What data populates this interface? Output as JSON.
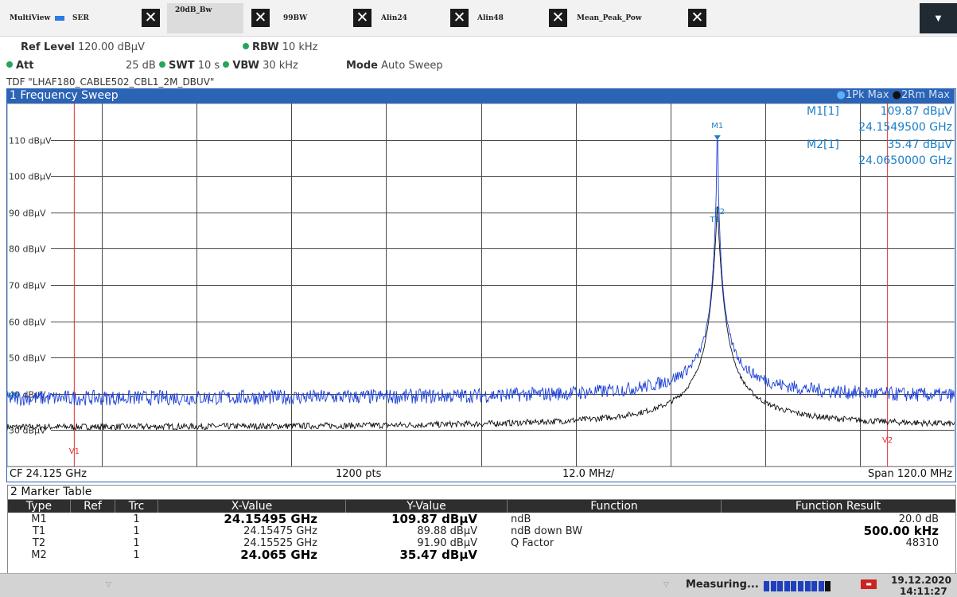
{
  "tabs": [
    {
      "label": "MultiView",
      "active": false
    },
    {
      "label": "SER",
      "active": false
    },
    {
      "label": "20dB_Bw",
      "active": true
    },
    {
      "label": "99BW",
      "active": false
    },
    {
      "label": "Alin24",
      "active": false
    },
    {
      "label": "Alin48",
      "active": false
    },
    {
      "label": "Mean_Peak_Pow",
      "active": false
    }
  ],
  "close_glyph": "✕",
  "settings": {
    "ref_level_label": "Ref Level",
    "ref_level_value": "120.00 dBµV",
    "rbw_label": "RBW",
    "rbw_value": "10 kHz",
    "att_label": "Att",
    "att_value": "25 dB",
    "swt_label": "SWT",
    "swt_value": "10 s",
    "vbw_label": "VBW",
    "vbw_value": "30 kHz",
    "mode_label": "Mode",
    "mode_value": "Auto Sweep",
    "tdf": "TDF \"LHAF180_CABLE502_CBL1_2M_DBUV\""
  },
  "sweep": {
    "title": "1 Frequency Sweep",
    "trace1_label": "1Pk Max",
    "trace2_label": "2Rm Max",
    "footer": {
      "cf": "CF 24.125 GHz",
      "pts": "1200 pts",
      "div": "12.0 MHz/",
      "span": "Span 120.0 MHz"
    },
    "marker_info": [
      {
        "name": "M1[1]",
        "level": "109.87 dBµV",
        "freq": "24.1549500 GHz"
      },
      {
        "name": "M2[1]",
        "level": "35.47 dBµV",
        "freq": "24.0650000 GHz"
      }
    ],
    "plot_markers": {
      "m1": "M1",
      "t2": "T2",
      "t1": "T1",
      "m2": "M2",
      "v1": "V1",
      "v2": "V2"
    }
  },
  "chart_data": {
    "type": "line",
    "title": "1 Frequency Sweep",
    "xlabel": "",
    "ylabel": "",
    "x_range_ghz": [
      24.065,
      24.185
    ],
    "ylim": [
      20,
      120
    ],
    "y_ticks": [
      "110 dBµV",
      "100 dBµV",
      "90 dBµV",
      "80 dBµV",
      "70 dBµV",
      "60 dBµV",
      "50 dBµV",
      "40 dBµV",
      "30 dBµV"
    ],
    "y_tick_values": [
      110,
      100,
      90,
      80,
      70,
      60,
      50,
      40,
      30
    ],
    "grid": true,
    "series": [
      {
        "name": "1Pk Max",
        "color": "#1a3fd6",
        "noise_floor": 38.5,
        "peak_x": 24.15495,
        "peak_y": 109.87
      },
      {
        "name": "2Rm Max",
        "color": "#111111",
        "noise_floor": 30.5,
        "peak_x": 24.15495,
        "peak_y": 91.5
      }
    ],
    "vertical_lines_ghz": [
      24.065,
      24.185
    ],
    "v1_ghz": 24.0735,
    "v2_ghz": 24.1765
  },
  "marker_table": {
    "title": "2 Marker Table",
    "columns": [
      "Type",
      "Ref",
      "Trc",
      "X-Value",
      "Y-Value",
      "Function",
      "Function Result"
    ],
    "rows": [
      {
        "type": "M1",
        "ref": "",
        "trc": "1",
        "x": "24.15495 GHz",
        "y": "109.87 dBµV",
        "function": "ndB",
        "result": "20.0 dB",
        "bold_xy": true,
        "bold_result": false
      },
      {
        "type": "T1",
        "ref": "",
        "trc": "1",
        "x": "24.15475 GHz",
        "y": "89.88 dBµV",
        "function": "ndB down BW",
        "result": "500.00 kHz",
        "bold_xy": false,
        "bold_result": true
      },
      {
        "type": "T2",
        "ref": "",
        "trc": "1",
        "x": "24.15525 GHz",
        "y": "91.90 dBµV",
        "function": "Q Factor",
        "result": "48310",
        "bold_xy": false,
        "bold_result": false
      },
      {
        "type": "M2",
        "ref": "",
        "trc": "1",
        "x": "24.065 GHz",
        "y": "35.47 dBµV",
        "function": "",
        "result": "",
        "bold_xy": true,
        "bold_result": false
      }
    ]
  },
  "status": {
    "measuring": "Measuring...",
    "progress": 0.85,
    "date": "19.12.2020",
    "time": "14:11:27",
    "colors": {
      "accent": "#1f5fbf",
      "progress": "#1f3fbf",
      "trace_blue": "#1a3fd6"
    }
  }
}
